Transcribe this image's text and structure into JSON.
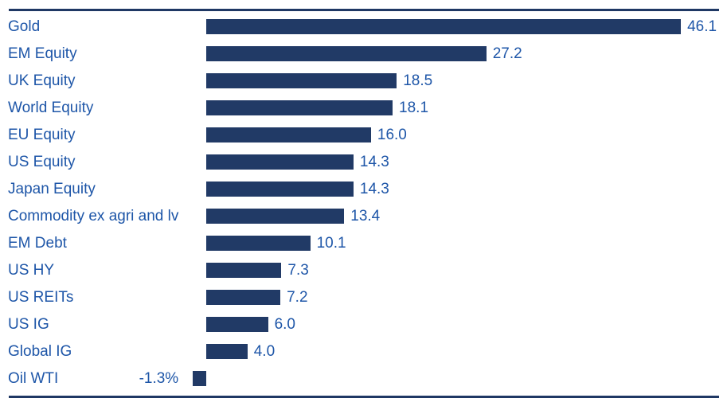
{
  "chart_data": {
    "type": "bar",
    "orientation": "horizontal",
    "title": "",
    "xlabel": "",
    "ylabel": "",
    "categories": [
      "Gold",
      "EM Equity",
      "UK Equity",
      "World Equity",
      "EU Equity",
      "US Equity",
      "Japan Equity",
      "Commodity ex agri and lv",
      "EM Debt",
      "US HY",
      "US REITs",
      "US IG",
      "Global IG",
      "Oil WTI"
    ],
    "values": [
      46.1,
      27.2,
      18.5,
      18.1,
      16.0,
      14.3,
      14.3,
      13.4,
      10.1,
      7.3,
      7.2,
      6.0,
      4.0,
      -1.3
    ],
    "value_labels": [
      "46.1",
      "27.2",
      "18.5",
      "18.1",
      "16.0",
      "14.3",
      "14.3",
      "13.4",
      "10.1",
      "7.3",
      "7.2",
      "6.0",
      "4.0",
      "-1.3%"
    ],
    "xlim": [
      -2,
      50
    ],
    "grid": false,
    "legend": false,
    "colors": {
      "bar": "#213A66",
      "label_text": "#1E56A8",
      "value_text": "#1E56A8",
      "rule": "#1F3864",
      "background": "#FFFFFF"
    }
  }
}
